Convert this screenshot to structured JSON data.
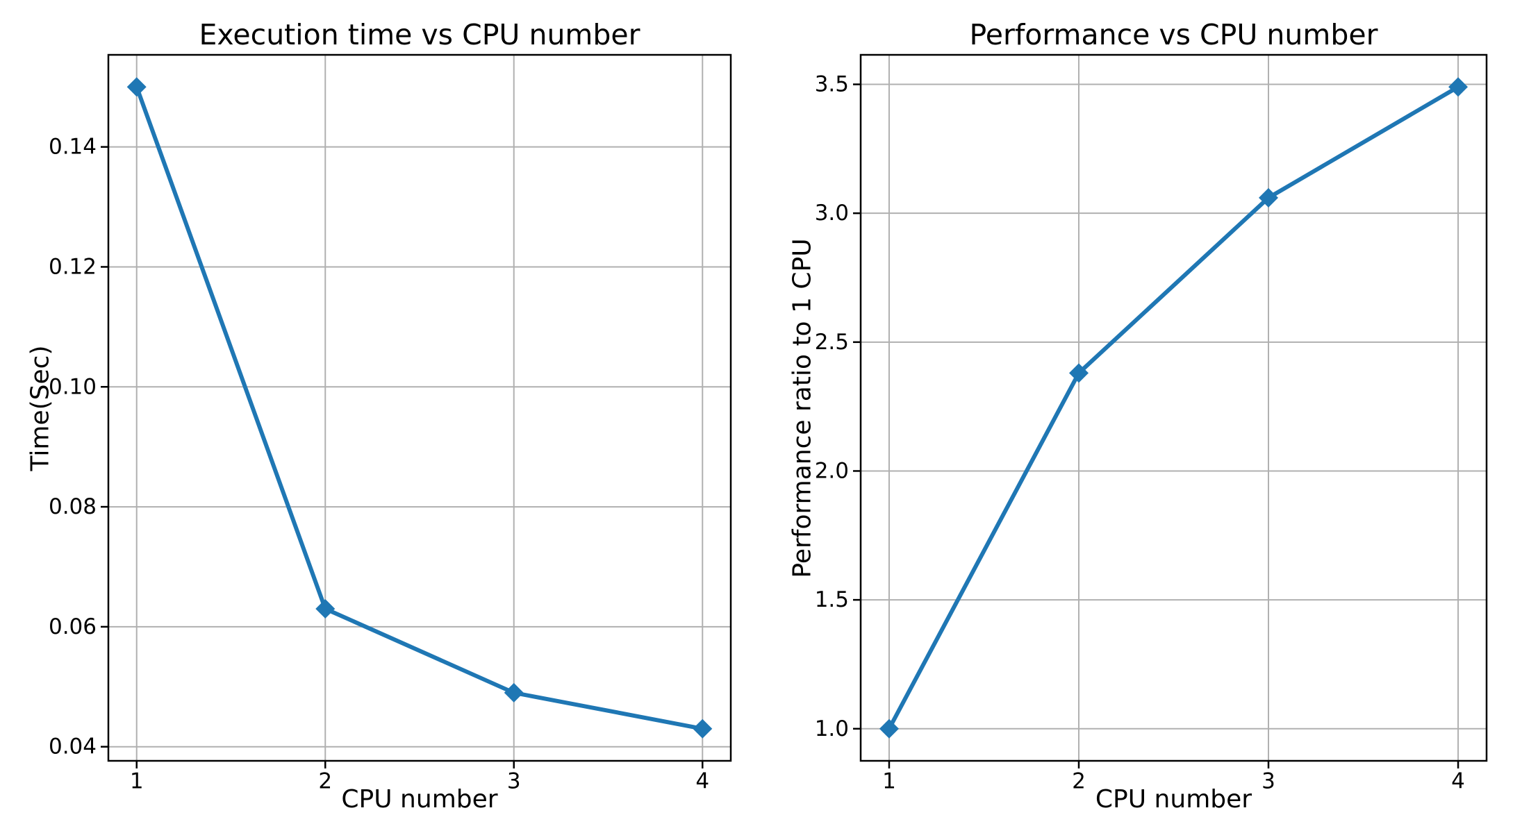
{
  "figure_title": "",
  "styles": {
    "background": "#ffffff",
    "line_color": "#1f77b4",
    "marker_color": "#1f77b4",
    "grid_color": "#b0b0b0",
    "spine_color": "#000000",
    "text_color": "#000000"
  },
  "chart_data": [
    {
      "type": "line",
      "title": "Execution time vs CPU number",
      "xlabel": "CPU number",
      "ylabel": "Time(Sec)",
      "x": [
        1,
        2,
        3,
        4
      ],
      "y": [
        0.15,
        0.063,
        0.049,
        0.043
      ],
      "series_name": "execution-time",
      "marker": "D",
      "line_color": "#1f77b4",
      "grid": true,
      "legend": "none",
      "xlim": [
        0.85,
        4.15
      ],
      "ylim": [
        0.03765,
        0.15535
      ],
      "xticks": [
        1,
        2,
        3,
        4
      ],
      "xtick_labels": [
        "1",
        "2",
        "3",
        "4"
      ],
      "yticks": [
        0.04,
        0.06,
        0.08,
        0.1,
        0.12,
        0.14
      ],
      "ytick_labels": [
        "0.04",
        "0.06",
        "0.08",
        "0.10",
        "0.12",
        "0.14"
      ]
    },
    {
      "type": "line",
      "title": "Performance vs CPU number",
      "xlabel": "CPU number",
      "ylabel": "Performance ratio to 1 CPU",
      "x": [
        1,
        2,
        3,
        4
      ],
      "y": [
        1.0,
        2.38,
        3.06,
        3.49
      ],
      "series_name": "performance-ratio",
      "marker": "D",
      "line_color": "#1f77b4",
      "grid": true,
      "legend": "none",
      "xlim": [
        0.85,
        4.15
      ],
      "ylim": [
        0.8755,
        3.6145
      ],
      "xticks": [
        1,
        2,
        3,
        4
      ],
      "xtick_labels": [
        "1",
        "2",
        "3",
        "4"
      ],
      "yticks": [
        1.0,
        1.5,
        2.0,
        2.5,
        3.0,
        3.5
      ],
      "ytick_labels": [
        "1.0",
        "1.5",
        "2.0",
        "2.5",
        "3.0",
        "3.5"
      ]
    }
  ]
}
